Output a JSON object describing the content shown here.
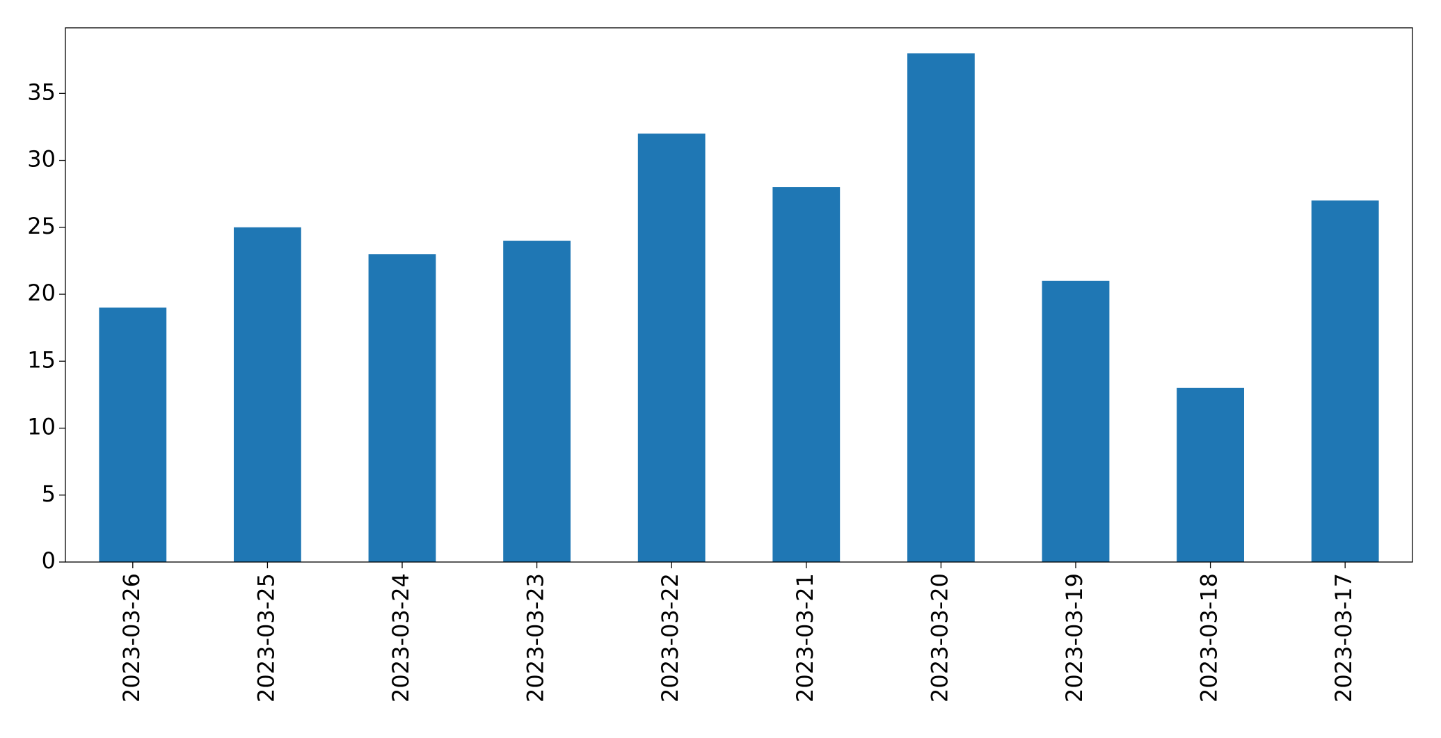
{
  "chart_data": {
    "type": "bar",
    "categories": [
      "2023-03-26",
      "2023-03-25",
      "2023-03-24",
      "2023-03-23",
      "2023-03-22",
      "2023-03-21",
      "2023-03-20",
      "2023-03-19",
      "2023-03-18",
      "2023-03-17"
    ],
    "values": [
      19,
      25,
      23,
      24,
      32,
      28,
      38,
      21,
      13,
      27
    ],
    "color": "#1f77b4",
    "ylim": [
      0,
      39.9
    ],
    "yticks": [
      0,
      5,
      10,
      15,
      20,
      25,
      30,
      35
    ],
    "grid": false
  }
}
